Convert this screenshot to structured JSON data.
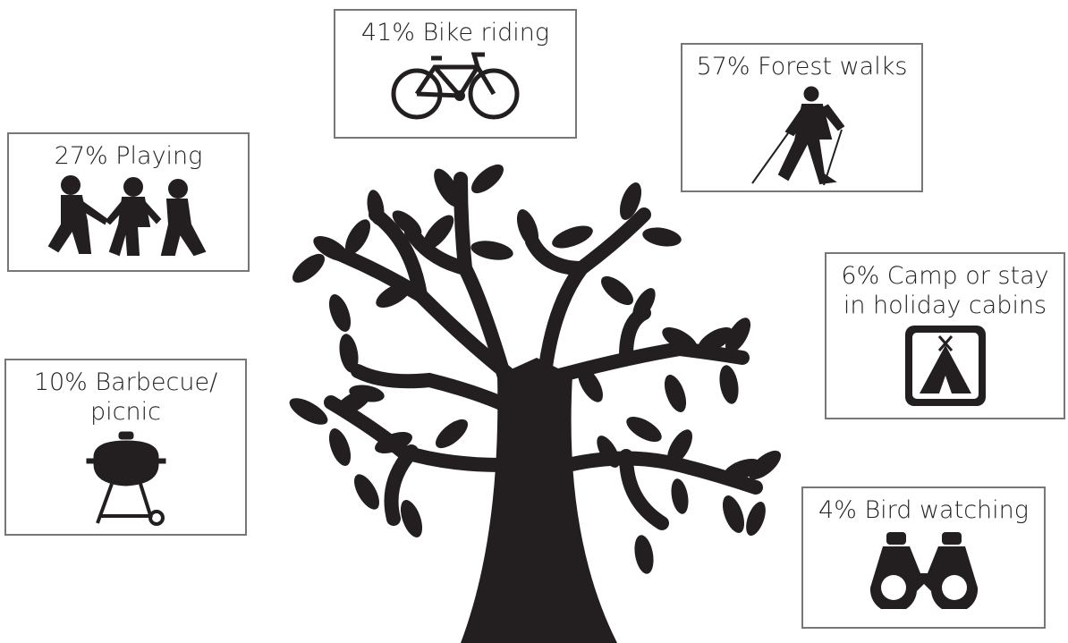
{
  "boxes": [
    {
      "lines": [
        "41% Bike riding"
      ]
    },
    {
      "lines": [
        "57% Forest walks"
      ]
    },
    {
      "lines": [
        "27% Playing"
      ]
    },
    {
      "lines": [
        "6% Camp or stay",
        "in holiday cabins"
      ]
    },
    {
      "lines": [
        "10% Barbecue/",
        "picnic"
      ]
    },
    {
      "lines": [
        "4% Bird watching"
      ]
    }
  ]
}
